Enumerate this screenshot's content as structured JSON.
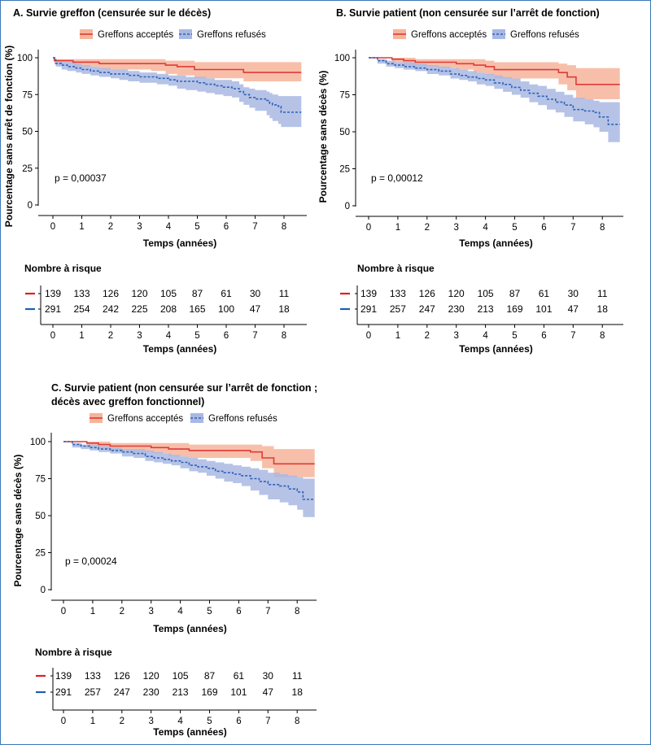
{
  "colors": {
    "accepted_line": "#e03a3a",
    "accepted_band": "#f6b49a",
    "refused_line": "#2e63b7",
    "refused_band": "#a9b8e3",
    "risk_red": "#e01e1e",
    "risk_blue": "#1f5fb0",
    "frame": "#3a79b8"
  },
  "chart_data": [
    {
      "id": "A",
      "type": "line",
      "title": "A. Survie greffon (censurée sur le décès)",
      "xlabel": "Temps (années)",
      "ylabel": "Pourcentage sans arrêt de fonction (%)",
      "xlim": [
        0,
        8.6
      ],
      "ylim": [
        0,
        100
      ],
      "xticks": [
        "0",
        "1",
        "2",
        "3",
        "4",
        "5",
        "6",
        "7",
        "8"
      ],
      "yticks": [
        "0",
        "25",
        "50",
        "75",
        "100"
      ],
      "legend_position": "top",
      "p_value": "p = 0,00037",
      "series": [
        {
          "name": "Greffons acceptés",
          "style": "solid",
          "x": [
            0,
            0.05,
            0.7,
            1.6,
            3.4,
            3.9,
            4.3,
            4.9,
            6.4,
            6.6,
            8.6
          ],
          "y": [
            100,
            98,
            97,
            96,
            96,
            95,
            94,
            92,
            92,
            90,
            90
          ],
          "lower": [
            100,
            96,
            94,
            92,
            91,
            89,
            88,
            86,
            86,
            84,
            84
          ],
          "upper": [
            100,
            99,
            99,
            99,
            99,
            98,
            98,
            97,
            97,
            97,
            97
          ]
        },
        {
          "name": "Greffons refusés",
          "style": "dashed",
          "x": [
            0,
            0.1,
            0.3,
            0.5,
            0.8,
            1.0,
            1.3,
            1.6,
            2.0,
            2.3,
            2.6,
            3.0,
            3.3,
            3.6,
            4.0,
            4.3,
            4.6,
            5.0,
            5.3,
            5.6,
            5.9,
            6.2,
            6.45,
            6.6,
            6.8,
            7.0,
            7.4,
            7.5,
            7.6,
            7.8,
            7.9,
            8.6
          ],
          "y": [
            100,
            96,
            95,
            94,
            93,
            92,
            91,
            90,
            89,
            89,
            88,
            87,
            87,
            86,
            85,
            84,
            84,
            83,
            82,
            81,
            80,
            79,
            77,
            75,
            73,
            72,
            71,
            69,
            68,
            67,
            63,
            63
          ],
          "lower": [
            100,
            94,
            92,
            91,
            90,
            89,
            88,
            87,
            86,
            85,
            84,
            83,
            83,
            82,
            81,
            79,
            78,
            77,
            76,
            75,
            74,
            73,
            70,
            68,
            66,
            64,
            61,
            59,
            57,
            55,
            53,
            53
          ],
          "upper": [
            100,
            98,
            97,
            97,
            96,
            95,
            94,
            93,
            92,
            92,
            91,
            90,
            90,
            89,
            88,
            88,
            87,
            87,
            86,
            85,
            85,
            84,
            82,
            80,
            79,
            78,
            77,
            76,
            75,
            74,
            74,
            74
          ]
        }
      ],
      "risk_table": {
        "title": "Nombre à risque",
        "xlabel": "Temps (années)",
        "xticks": [
          "0",
          "1",
          "2",
          "3",
          "4",
          "5",
          "6",
          "7",
          "8"
        ],
        "rows": [
          {
            "color": "red",
            "values": [
              "139",
              "133",
              "126",
              "120",
              "105",
              "87",
              "61",
              "30",
              "11"
            ]
          },
          {
            "color": "blue",
            "values": [
              "291",
              "254",
              "242",
              "225",
              "208",
              "165",
              "100",
              "47",
              "18"
            ]
          }
        ]
      }
    },
    {
      "id": "B",
      "type": "line",
      "title": "B. Survie patient (non censurée sur l’arrêt de fonction)",
      "xlabel": "Temps (années)",
      "ylabel": "Pourcentage sans décès (%)",
      "xlim": [
        0,
        8.6
      ],
      "ylim": [
        0,
        100
      ],
      "xticks": [
        "0",
        "1",
        "2",
        "3",
        "4",
        "5",
        "6",
        "7",
        "8"
      ],
      "yticks": [
        "0",
        "25",
        "50",
        "75",
        "100"
      ],
      "legend_position": "top",
      "p_value": "p = 0,00012",
      "series": [
        {
          "name": "Greffons acceptés",
          "style": "solid",
          "x": [
            0,
            0.8,
            1.2,
            1.6,
            2.4,
            3.0,
            3.6,
            4.0,
            4.3,
            6.2,
            6.5,
            6.8,
            7.1,
            8.6
          ],
          "y": [
            100,
            99,
            98,
            97,
            97,
            96,
            95,
            94,
            92,
            92,
            90,
            87,
            82,
            82
          ],
          "lower": [
            100,
            97,
            95,
            94,
            93,
            92,
            90,
            88,
            86,
            86,
            82,
            78,
            72,
            72
          ],
          "upper": [
            100,
            100,
            100,
            99,
            99,
            99,
            99,
            98,
            97,
            97,
            96,
            95,
            93,
            93
          ]
        },
        {
          "name": "Greffons refusés",
          "style": "dashed",
          "x": [
            0,
            0.3,
            0.6,
            0.9,
            1.2,
            1.6,
            2.0,
            2.4,
            2.8,
            3.1,
            3.4,
            3.7,
            4.0,
            4.3,
            4.6,
            4.9,
            5.2,
            5.5,
            5.8,
            6.1,
            6.4,
            6.7,
            7.0,
            7.4,
            7.7,
            7.9,
            8.2,
            8.6
          ],
          "y": [
            100,
            98,
            96,
            95,
            94,
            93,
            92,
            91,
            89,
            88,
            87,
            86,
            85,
            83,
            82,
            80,
            78,
            76,
            74,
            72,
            70,
            68,
            65,
            64,
            63,
            60,
            55,
            55
          ],
          "lower": [
            100,
            96,
            94,
            93,
            92,
            91,
            89,
            88,
            86,
            85,
            84,
            82,
            81,
            79,
            77,
            75,
            73,
            70,
            68,
            65,
            63,
            60,
            57,
            55,
            53,
            50,
            43,
            43
          ],
          "upper": [
            100,
            99,
            98,
            97,
            97,
            96,
            95,
            94,
            93,
            92,
            91,
            90,
            89,
            88,
            87,
            86,
            84,
            82,
            81,
            79,
            77,
            75,
            73,
            72,
            71,
            70,
            70,
            70
          ]
        }
      ],
      "risk_table": {
        "title": "Nombre à risque",
        "xlabel": "Temps (années)",
        "xticks": [
          "0",
          "1",
          "2",
          "3",
          "4",
          "5",
          "6",
          "7",
          "8"
        ],
        "rows": [
          {
            "color": "red",
            "values": [
              "139",
              "133",
              "126",
              "120",
              "105",
              "87",
              "61",
              "30",
              "11"
            ]
          },
          {
            "color": "blue",
            "values": [
              "291",
              "257",
              "247",
              "230",
              "213",
              "169",
              "101",
              "47",
              "18"
            ]
          }
        ]
      }
    },
    {
      "id": "C",
      "type": "line",
      "title": "C. Survie patient (non censurée sur l’arrêt de fonction ;",
      "title_line2": "décès avec greffon fonctionnel)",
      "xlabel": "Temps (années)",
      "ylabel": "Pourcentage sans décès (%)",
      "xlim": [
        0,
        8.6
      ],
      "ylim": [
        0,
        100
      ],
      "xticks": [
        "0",
        "1",
        "2",
        "3",
        "4",
        "5",
        "6",
        "7",
        "8"
      ],
      "yticks": [
        "0",
        "25",
        "50",
        "75",
        "100"
      ],
      "legend_position": "top",
      "p_value": "p = 0,00024",
      "series": [
        {
          "name": "Greffons acceptés",
          "style": "solid",
          "x": [
            0,
            0.8,
            1.2,
            1.6,
            2.4,
            3.0,
            3.6,
            4.3,
            6.4,
            6.8,
            7.2,
            8.6
          ],
          "y": [
            100,
            99,
            98,
            97,
            97,
            96,
            95,
            94,
            93,
            89,
            85,
            85
          ],
          "lower": [
            100,
            97,
            95,
            94,
            93,
            92,
            90,
            89,
            87,
            82,
            76,
            76
          ],
          "upper": [
            100,
            100,
            100,
            99,
            99,
            99,
            99,
            98,
            98,
            97,
            95,
            95
          ]
        },
        {
          "name": "Greffons refusés",
          "style": "dashed",
          "x": [
            0,
            0.3,
            0.6,
            0.9,
            1.2,
            1.6,
            2.0,
            2.4,
            2.8,
            3.1,
            3.4,
            3.7,
            4.0,
            4.3,
            4.6,
            4.9,
            5.2,
            5.5,
            5.8,
            6.1,
            6.4,
            6.7,
            7.0,
            7.4,
            7.7,
            8.0,
            8.2,
            8.6
          ],
          "y": [
            100,
            98,
            97,
            96,
            95,
            94,
            93,
            92,
            90,
            89,
            88,
            87,
            86,
            84,
            83,
            82,
            80,
            79,
            78,
            77,
            75,
            73,
            71,
            70,
            68,
            66,
            61,
            61
          ],
          "lower": [
            100,
            96,
            95,
            94,
            93,
            92,
            90,
            89,
            87,
            86,
            85,
            84,
            82,
            80,
            79,
            77,
            75,
            73,
            72,
            70,
            67,
            64,
            61,
            59,
            57,
            54,
            49,
            49
          ],
          "upper": [
            100,
            99,
            98,
            98,
            97,
            96,
            95,
            95,
            94,
            93,
            92,
            91,
            90,
            89,
            88,
            87,
            86,
            85,
            84,
            83,
            82,
            81,
            79,
            78,
            77,
            76,
            75,
            75
          ]
        }
      ],
      "risk_table": {
        "title": "Nombre à risque",
        "xlabel": "Temps (années)",
        "xticks": [
          "0",
          "1",
          "2",
          "3",
          "4",
          "5",
          "6",
          "7",
          "8"
        ],
        "rows": [
          {
            "color": "red",
            "values": [
              "139",
              "133",
              "126",
              "120",
              "105",
              "87",
              "61",
              "30",
              "11"
            ]
          },
          {
            "color": "blue",
            "values": [
              "291",
              "257",
              "247",
              "230",
              "213",
              "169",
              "101",
              "47",
              "18"
            ]
          }
        ]
      }
    }
  ]
}
